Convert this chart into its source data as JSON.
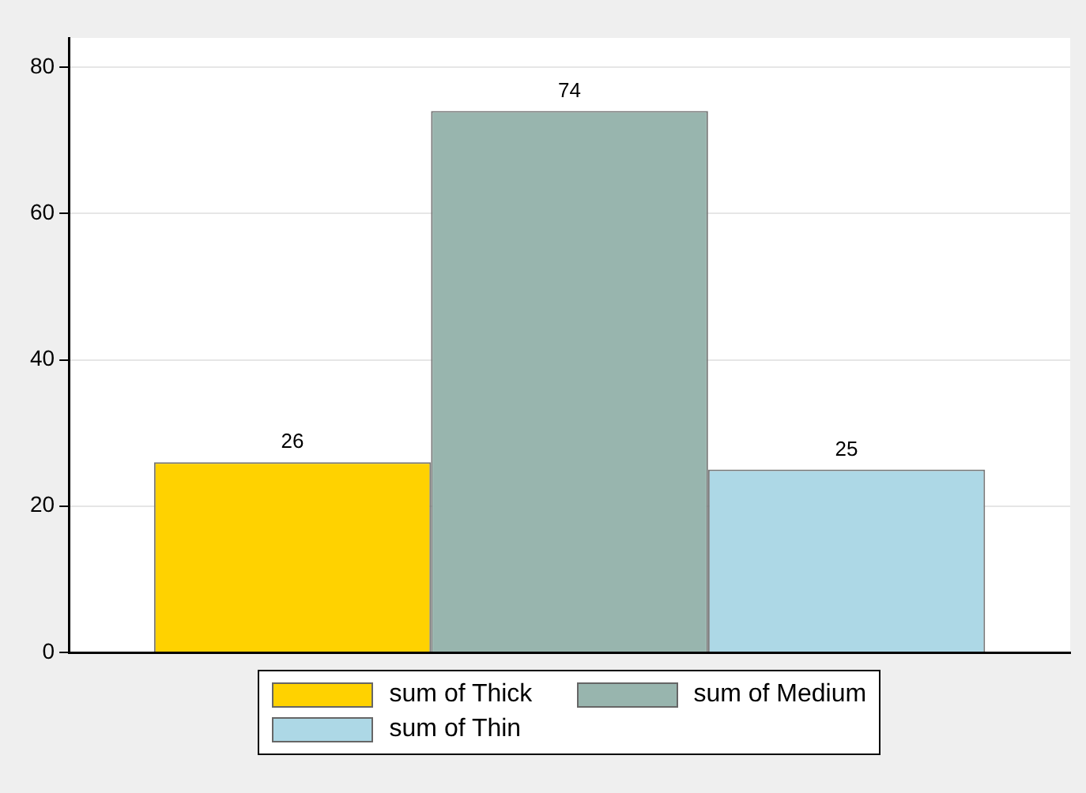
{
  "chart_data": {
    "type": "bar",
    "categories": [
      null
    ],
    "series": [
      {
        "name": "sum of Thick",
        "color": "#ffd200",
        "values": [
          26
        ]
      },
      {
        "name": "sum of Medium",
        "color": "#98b5ae",
        "values": [
          74
        ]
      },
      {
        "name": "sum of Thin",
        "color": "#add8e6",
        "values": [
          25
        ]
      }
    ],
    "ylim": [
      0,
      84
    ],
    "yticks": [
      0,
      20,
      40,
      60,
      80
    ],
    "grid": "y",
    "legend": "bottom",
    "data_labels": true
  }
}
